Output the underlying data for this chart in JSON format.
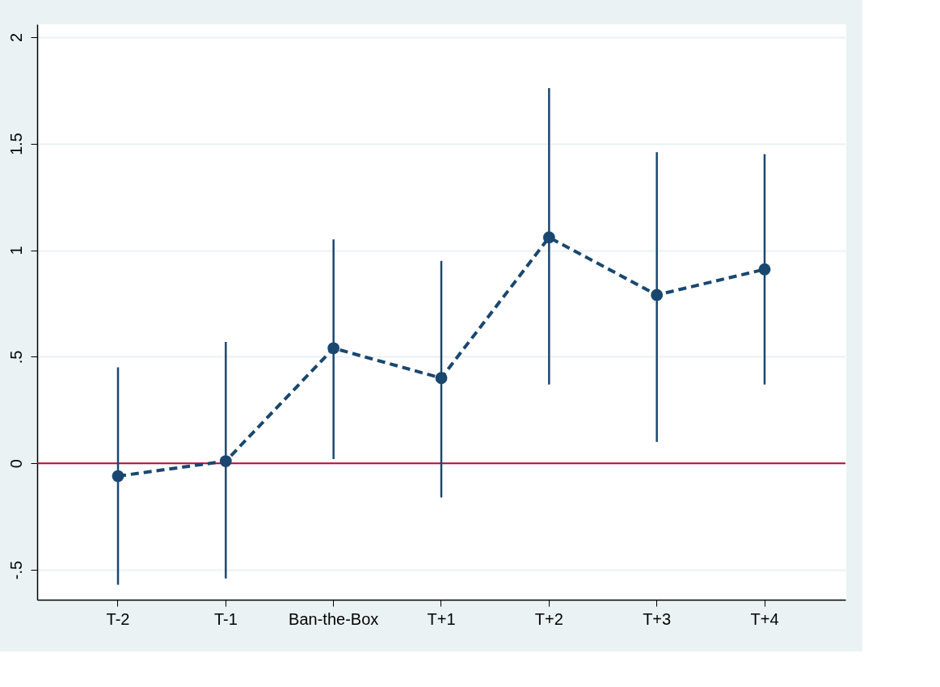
{
  "chart_data": {
    "type": "line",
    "categories": [
      "T-2",
      "T-1",
      "Ban-the-Box",
      "T+1",
      "T+2",
      "T+3",
      "T+4"
    ],
    "series": [
      {
        "color": "#1a476f",
        "values": [
          -0.06,
          0.01,
          0.54,
          0.4,
          1.06,
          0.79,
          0.91
        ],
        "errors": [
          [
            -0.57,
            0.45
          ],
          [
            -0.54,
            0.57
          ],
          [
            0.02,
            1.05
          ],
          [
            -0.16,
            0.95
          ],
          [
            0.37,
            1.76
          ],
          [
            0.1,
            1.46
          ],
          [
            0.37,
            1.45
          ]
        ]
      }
    ],
    "ylim": [
      -0.64,
      2.06
    ],
    "yticks": [
      {
        "value": -0.5,
        "label": "-.5"
      },
      0,
      {
        "value": 0.5,
        "label": ".5"
      },
      1,
      1.5,
      2
    ],
    "ref_lines": [
      {
        "axis": "y",
        "value": 0,
        "color": "#c10534"
      }
    ],
    "grid": "y",
    "marker": "circle",
    "line_style": "dashed"
  }
}
